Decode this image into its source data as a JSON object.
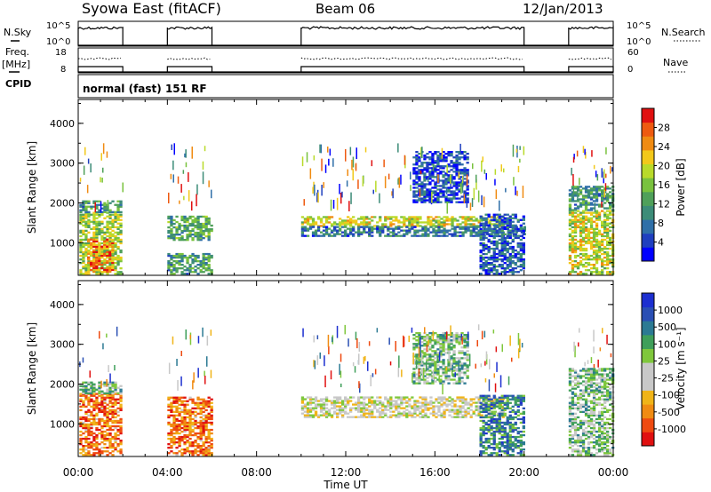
{
  "header": {
    "station": "Syowa East (fitACF)",
    "beam": "Beam 06",
    "date": "12/Jan/2013"
  },
  "left_labels": {
    "nsky": "N.Sky",
    "freq_top": "Freq.",
    "freq_unit": "[MHz]",
    "cpid": "CPID"
  },
  "right_labels": {
    "nsearch": "N.Search",
    "nave": "Nave"
  },
  "mini_ticks": {
    "noise_top": "10^5",
    "noise_bottom": "10^0",
    "freq_top": "18",
    "freq_bottom": "8",
    "nave_top": "60",
    "nave_bottom": "0"
  },
  "cpid_text": "normal (fast) 151 RF",
  "x_axis": {
    "ticks": [
      "00:00",
      "04:00",
      "08:00",
      "12:00",
      "16:00",
      "20:00",
      "00:00"
    ],
    "label": "Time UT"
  },
  "y_axis": {
    "label": "Slant Range [km]",
    "ticks": [
      "1000",
      "2000",
      "3000",
      "4000"
    ]
  },
  "colors": {
    "power": [
      "#0000ff",
      "#1f3fbf",
      "#2f6fa8",
      "#3c8c78",
      "#4fa05a",
      "#79c23e",
      "#b9da2a",
      "#f2c81a",
      "#f08b12",
      "#ee5a10",
      "#e01010"
    ],
    "velocity": [
      "#e01010",
      "#ee4a10",
      "#f08b12",
      "#f0b418",
      "#c8c8c8",
      "#c8c8c8",
      "#7fc73c",
      "#3f9f5a",
      "#2c7a93",
      "#2a4fb4",
      "#1c2fd0"
    ]
  },
  "chart_data": [
    {
      "type": "line",
      "title": "N.Sky / N.Search",
      "xlabel": "",
      "ylabel": "N.Sky",
      "ylim_labels": [
        "10^0",
        "10^5"
      ],
      "x": [
        "00:00",
        "02:00",
        "04:00",
        "06:00",
        "10:00",
        "20:00",
        "22:00",
        "00:00"
      ],
      "series": [
        {
          "name": "N.Sky",
          "segments": [
            [
              0.0,
              2.0
            ],
            [
              4.0,
              6.0
            ],
            [
              10.0,
              20.0
            ],
            [
              22.0,
              24.0
            ]
          ],
          "value": 4.6
        },
        {
          "name": "N.Search",
          "value": 0
        }
      ]
    },
    {
      "type": "line",
      "title": "Freq. / Nave",
      "ylabel": "Freq. [MHz]",
      "ylim": [
        8,
        18
      ],
      "series": [
        {
          "name": "Freq.",
          "segments": [
            [
              0.0,
              2.0
            ],
            [
              4.0,
              6.0
            ],
            [
              10.0,
              20.0
            ],
            [
              22.0,
              24.0
            ]
          ],
          "value": 10.0
        },
        {
          "name": "Nave",
          "segments": [
            [
              0.0,
              2.0
            ],
            [
              4.0,
              6.0
            ],
            [
              10.0,
              20.0
            ],
            [
              22.0,
              24.0
            ]
          ],
          "value": 42
        }
      ]
    },
    {
      "type": "heatmap",
      "title": "Power",
      "xlabel": "Time UT",
      "ylabel": "Slant Range [km]",
      "xlim": [
        0,
        24
      ],
      "ylim": [
        180,
        4600
      ],
      "colorbar": {
        "label": "Power [dB]",
        "ticks": [
          4,
          8,
          12,
          16,
          20,
          24,
          28
        ],
        "range": [
          0,
          32
        ]
      },
      "regions": [
        {
          "t": [
            0.05,
            1.95
          ],
          "r": [
            200,
            1750
          ],
          "level": 0.55
        },
        {
          "t": [
            0.05,
            1.95
          ],
          "r": [
            1750,
            2050
          ],
          "level": 0.35
        },
        {
          "t": [
            0.4,
            1.6
          ],
          "r": [
            250,
            1100
          ],
          "level": 0.8
        },
        {
          "t": [
            4.0,
            5.95
          ],
          "r": [
            1050,
            1650
          ],
          "level": 0.4
        },
        {
          "t": [
            4.0,
            5.95
          ],
          "r": [
            200,
            700
          ],
          "level": 0.35
        },
        {
          "t": [
            10.0,
            19.0
          ],
          "r": [
            1400,
            1650
          ],
          "level": 0.6
        },
        {
          "t": [
            10.0,
            20.0
          ],
          "r": [
            1150,
            1400
          ],
          "level": 0.25
        },
        {
          "t": [
            15.0,
            17.5
          ],
          "r": [
            2000,
            3300
          ],
          "level": 0.15
        },
        {
          "t": [
            18.0,
            20.0
          ],
          "r": [
            200,
            1700
          ],
          "level": 0.2
        },
        {
          "t": [
            22.0,
            24.0
          ],
          "r": [
            200,
            1800
          ],
          "level": 0.6
        },
        {
          "t": [
            22.0,
            24.0
          ],
          "r": [
            1800,
            2400
          ],
          "level": 0.35
        }
      ]
    },
    {
      "type": "heatmap",
      "title": "Velocity",
      "xlabel": "Time UT",
      "ylabel": "Slant Range [km]",
      "xlim": [
        0,
        24
      ],
      "ylim": [
        180,
        4600
      ],
      "colorbar": {
        "label": "Velocity [m s^-1]",
        "ticks": [
          1000,
          500,
          100,
          25,
          -25,
          -100,
          -500,
          -1000
        ]
      },
      "regions": [
        {
          "t": [
            0.05,
            1.95
          ],
          "r": [
            200,
            1750
          ],
          "level": 0.2
        },
        {
          "t": [
            0.05,
            1.95
          ],
          "r": [
            1750,
            2050
          ],
          "level": 0.6
        },
        {
          "t": [
            4.0,
            5.95
          ],
          "r": [
            200,
            1650
          ],
          "level": 0.2
        },
        {
          "t": [
            10.0,
            19.0
          ],
          "r": [
            1150,
            1650
          ],
          "level": 0.45
        },
        {
          "t": [
            15.0,
            17.5
          ],
          "r": [
            2000,
            3300
          ],
          "level": 0.6
        },
        {
          "t": [
            18.0,
            20.0
          ],
          "r": [
            200,
            1700
          ],
          "level": 0.75
        },
        {
          "t": [
            22.0,
            24.0
          ],
          "r": [
            200,
            2400
          ],
          "level": 0.6
        }
      ]
    }
  ]
}
